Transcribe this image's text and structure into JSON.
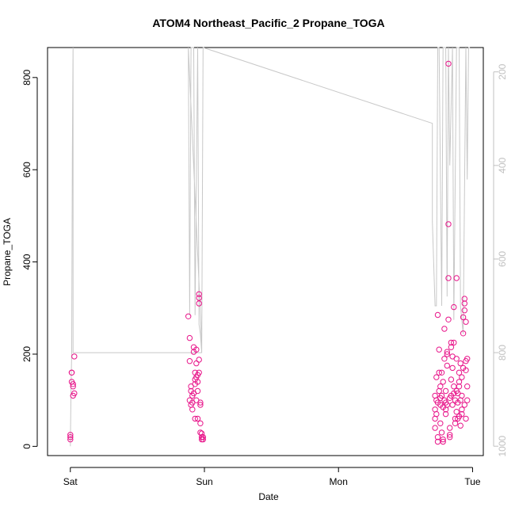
{
  "chart_data": {
    "type": "scatter",
    "title": "ATOM4 Northeast_Pacific_2 Propane_TOGA",
    "xlabel": "Date",
    "ylabel": "Propane_TOGA",
    "x_ticks": [
      {
        "label": "Sat",
        "value": 0
      },
      {
        "label": "Sun",
        "value": 1
      },
      {
        "label": "Mon",
        "value": 2
      },
      {
        "label": "Tue",
        "value": 3
      }
    ],
    "xlim": [
      -0.17,
      3.08
    ],
    "ylim": [
      -20,
      865
    ],
    "y_ticks": [
      0,
      200,
      400,
      600,
      800
    ],
    "y2_ticks": [
      200,
      400,
      600,
      800,
      1000
    ],
    "y2lim": [
      1020,
      148
    ],
    "colors": {
      "points": "#e8158a",
      "altitude_line": "#c8c8c8"
    },
    "series": [
      {
        "points": [
          [
            0.0,
            15
          ],
          [
            0.0,
            25
          ],
          [
            0.0,
            20
          ],
          [
            0.01,
            160
          ],
          [
            0.01,
            160
          ],
          [
            0.01,
            140
          ],
          [
            0.02,
            130
          ],
          [
            0.02,
            135
          ],
          [
            0.02,
            110
          ],
          [
            0.03,
            115
          ],
          [
            0.03,
            195
          ],
          [
            0.88,
            282
          ],
          [
            0.89,
            185
          ],
          [
            0.89,
            235
          ],
          [
            0.89,
            100
          ],
          [
            0.9,
            120
          ],
          [
            0.9,
            90
          ],
          [
            0.9,
            130
          ],
          [
            0.91,
            80
          ],
          [
            0.91,
            95
          ],
          [
            0.91,
            110
          ],
          [
            0.92,
            205
          ],
          [
            0.92,
            215
          ],
          [
            0.92,
            115
          ],
          [
            0.93,
            135
          ],
          [
            0.93,
            145
          ],
          [
            0.93,
            60
          ],
          [
            0.93,
            160
          ],
          [
            0.94,
            210
          ],
          [
            0.94,
            180
          ],
          [
            0.94,
            150
          ],
          [
            0.94,
            100
          ],
          [
            0.95,
            155
          ],
          [
            0.95,
            140
          ],
          [
            0.95,
            120
          ],
          [
            0.95,
            60
          ],
          [
            0.96,
            310
          ],
          [
            0.96,
            330
          ],
          [
            0.96,
            322
          ],
          [
            0.96,
            188
          ],
          [
            0.96,
            160
          ],
          [
            0.97,
            90
          ],
          [
            0.97,
            95
          ],
          [
            0.97,
            50
          ],
          [
            0.97,
            30
          ],
          [
            0.98,
            20
          ],
          [
            0.98,
            28
          ],
          [
            0.98,
            15
          ],
          [
            0.99,
            20
          ],
          [
            0.99,
            15
          ],
          [
            2.72,
            40
          ],
          [
            2.72,
            60
          ],
          [
            2.72,
            80
          ],
          [
            2.73,
            100
          ],
          [
            2.73,
            70
          ],
          [
            2.73,
            150
          ],
          [
            2.74,
            20
          ],
          [
            2.74,
            10
          ],
          [
            2.74,
            285
          ],
          [
            2.75,
            210
          ],
          [
            2.75,
            160
          ],
          [
            2.75,
            120
          ],
          [
            2.76,
            90
          ],
          [
            2.76,
            130
          ],
          [
            2.76,
            50
          ],
          [
            2.77,
            30
          ],
          [
            2.77,
            160
          ],
          [
            2.77,
            110
          ],
          [
            2.78,
            15
          ],
          [
            2.78,
            10
          ],
          [
            2.78,
            140
          ],
          [
            2.79,
            255
          ],
          [
            2.79,
            190
          ],
          [
            2.79,
            100
          ],
          [
            2.8,
            120
          ],
          [
            2.8,
            80
          ],
          [
            2.8,
            70
          ],
          [
            2.81,
            205
          ],
          [
            2.81,
            200
          ],
          [
            2.81,
            175
          ],
          [
            2.81,
            90
          ],
          [
            2.82,
            482
          ],
          [
            2.82,
            365
          ],
          [
            2.82,
            275
          ],
          [
            2.82,
            830
          ],
          [
            2.83,
            20
          ],
          [
            2.83,
            25
          ],
          [
            2.83,
            40
          ],
          [
            2.84,
            225
          ],
          [
            2.84,
            215
          ],
          [
            2.84,
            145
          ],
          [
            2.84,
            110
          ],
          [
            2.85,
            195
          ],
          [
            2.85,
            170
          ],
          [
            2.85,
            90
          ],
          [
            2.86,
            302
          ],
          [
            2.86,
            225
          ],
          [
            2.86,
            130
          ],
          [
            2.87,
            60
          ],
          [
            2.87,
            50
          ],
          [
            2.87,
            100
          ],
          [
            2.88,
            365
          ],
          [
            2.88,
            190
          ],
          [
            2.88,
            75
          ],
          [
            2.89,
            115
          ],
          [
            2.89,
            95
          ],
          [
            2.89,
            60
          ],
          [
            2.9,
            160
          ],
          [
            2.9,
            140
          ],
          [
            2.9,
            130
          ],
          [
            2.91,
            180
          ],
          [
            2.91,
            100
          ],
          [
            2.91,
            45
          ],
          [
            2.92,
            150
          ],
          [
            2.92,
            80
          ],
          [
            2.92,
            70
          ],
          [
            2.93,
            280
          ],
          [
            2.93,
            245
          ],
          [
            2.93,
            170
          ],
          [
            2.94,
            320
          ],
          [
            2.94,
            310
          ],
          [
            2.94,
            295
          ],
          [
            2.95,
            270
          ],
          [
            2.95,
            185
          ],
          [
            2.95,
            165
          ],
          [
            2.96,
            130
          ],
          [
            2.96,
            100
          ],
          [
            2.96,
            190
          ],
          [
            2.72,
            110
          ],
          [
            2.74,
            95
          ],
          [
            2.76,
            105
          ],
          [
            2.78,
            85
          ],
          [
            2.8,
            95
          ],
          [
            2.83,
            105
          ],
          [
            2.86,
            115
          ],
          [
            2.88,
            120
          ],
          [
            2.9,
            65
          ],
          [
            2.92,
            110
          ],
          [
            2.94,
            90
          ],
          [
            2.95,
            60
          ]
        ]
      }
    ],
    "altitude_line": [
      [
        0.0,
        1000
      ],
      [
        0.005,
        880
      ],
      [
        0.01,
        800
      ],
      [
        0.015,
        380
      ],
      [
        0.02,
        148
      ],
      [
        0.02,
        800
      ],
      [
        0.98,
        800
      ],
      [
        0.98,
        780
      ],
      [
        0.88,
        148
      ],
      [
        0.89,
        720
      ],
      [
        0.9,
        148
      ],
      [
        0.92,
        148
      ],
      [
        0.93,
        720
      ],
      [
        0.95,
        148
      ],
      [
        0.96,
        740
      ],
      [
        0.97,
        760
      ],
      [
        0.98,
        800
      ],
      [
        0.99,
        148
      ],
      [
        2.7,
        310
      ],
      [
        2.7,
        520
      ],
      [
        2.72,
        700
      ],
      [
        2.73,
        700
      ],
      [
        2.74,
        148
      ],
      [
        2.75,
        148
      ],
      [
        2.77,
        700
      ],
      [
        2.78,
        148
      ],
      [
        2.8,
        148
      ],
      [
        2.81,
        680
      ],
      [
        2.82,
        148
      ],
      [
        2.83,
        400
      ],
      [
        2.85,
        148
      ],
      [
        2.86,
        730
      ],
      [
        2.88,
        148
      ],
      [
        2.9,
        148
      ],
      [
        2.91,
        700
      ],
      [
        2.93,
        760
      ],
      [
        2.95,
        148
      ],
      [
        2.96,
        430
      ],
      [
        2.97,
        148
      ],
      [
        2.98,
        148
      ]
    ]
  }
}
